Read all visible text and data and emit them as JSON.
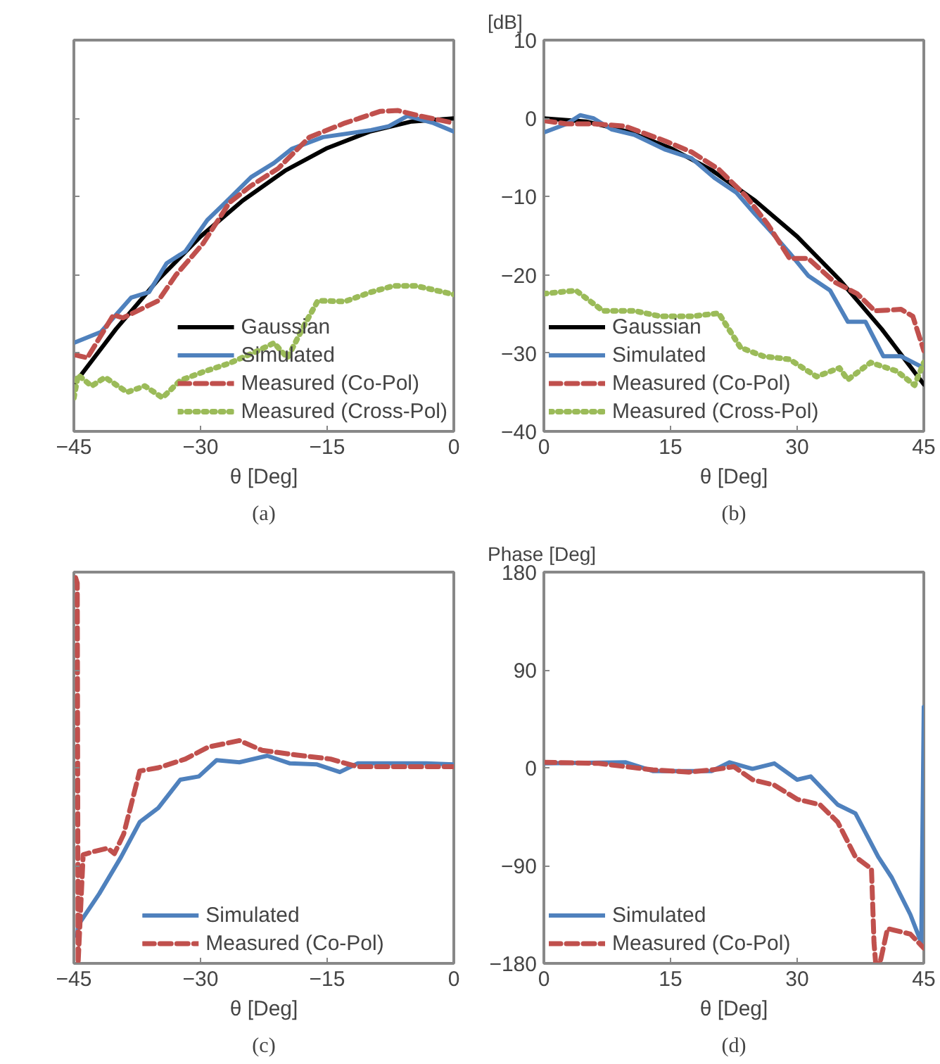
{
  "chart_data": [
    {
      "type": "line",
      "xlabel": "θ [Deg]",
      "annotations": [
        "(a)"
      ],
      "xlim": [
        -45,
        0
      ],
      "xticks": [
        -45,
        -30,
        -15,
        0
      ],
      "ylim": [
        -40,
        10
      ],
      "yticks": [
        -40,
        -30,
        -20,
        -10,
        0,
        10
      ],
      "tick_labels": "x",
      "legend": "bottom right",
      "series": [
        {
          "name": "Gaussian",
          "color": "#000000",
          "line_style": "solid",
          "x": [
            -45,
            -40,
            -35,
            -30,
            -25,
            -20,
            -15,
            -10,
            -5,
            0
          ],
          "values": [
            -34,
            -26.9,
            -20.6,
            -15.1,
            -10.5,
            -6.7,
            -3.8,
            -1.7,
            -0.4,
            0
          ]
        },
        {
          "name": "Simulated",
          "color": "#4f81bd",
          "line_style": "solid",
          "x": [
            -45,
            -41.8,
            -38.2,
            -36.1,
            -34,
            -31.8,
            -29.2,
            -27.1,
            -24,
            -21.3,
            -19.2,
            -15.5,
            -9.8,
            -7.7,
            -5.5,
            -2.4,
            0
          ],
          "values": [
            -28.7,
            -27.3,
            -22.9,
            -22.2,
            -18.5,
            -17,
            -13,
            -10.8,
            -7.5,
            -5.7,
            -3.9,
            -2.4,
            -1.5,
            -1,
            0.3,
            -0.6,
            -1.7
          ]
        },
        {
          "name": "Measured (Co-Pol)",
          "color": "#c0504d",
          "line_style": "dashed",
          "x": [
            -45,
            -43.4,
            -40.3,
            -39.2,
            -37.1,
            -35,
            -32.9,
            -29.7,
            -26.6,
            -24,
            -20.8,
            -17.1,
            -12.9,
            -8.7,
            -6.6,
            -4,
            0
          ],
          "values": [
            -30.2,
            -30.6,
            -25.1,
            -25.5,
            -24.4,
            -23.3,
            -20,
            -16,
            -10.8,
            -8.6,
            -6.4,
            -2.4,
            -0.6,
            0.9,
            1,
            0.3,
            -0.6
          ]
        },
        {
          "name": "Measured (Cross-Pol)",
          "color": "#9bbb59",
          "line_style": "dotted",
          "x": [
            -45,
            -44.5,
            -42.9,
            -41.3,
            -38.7,
            -36.6,
            -34.5,
            -32.4,
            -29.7,
            -26.6,
            -23.4,
            -21.3,
            -19.7,
            -17.6,
            -16.1,
            -12.9,
            -9.8,
            -7.1,
            -4.5,
            0
          ],
          "values": [
            -35.7,
            -32.8,
            -34.2,
            -33.1,
            -35,
            -34.2,
            -35.7,
            -33.5,
            -32.4,
            -31.3,
            -29.8,
            -28.7,
            -30.6,
            -26.2,
            -23.3,
            -23.4,
            -22.2,
            -21.4,
            -21.4,
            -22.5
          ]
        }
      ]
    },
    {
      "type": "line",
      "xlabel": "θ [Deg]",
      "ylabel": "[dB]",
      "annotations": [
        "(b)"
      ],
      "xlim": [
        0,
        45
      ],
      "xticks": [
        0,
        15,
        30,
        45
      ],
      "ylim": [
        -40,
        10
      ],
      "yticks": [
        -40,
        -30,
        -20,
        -10,
        0,
        10
      ],
      "legend": "bottom left",
      "series": [
        {
          "name": "Gaussian",
          "color": "#000000",
          "line_style": "solid",
          "x": [
            0,
            5,
            10,
            15,
            20,
            25,
            30,
            35,
            40,
            45
          ],
          "values": [
            0,
            -0.4,
            -1.7,
            -3.8,
            -6.7,
            -10.5,
            -15.1,
            -20.6,
            -26.9,
            -34
          ]
        },
        {
          "name": "Simulated",
          "color": "#4f81bd",
          "line_style": "solid",
          "x": [
            0,
            2.7,
            4.3,
            5.9,
            8,
            10.7,
            14.4,
            17.5,
            20.2,
            22.8,
            24.9,
            27,
            29.1,
            31.3,
            33.9,
            36,
            38.1,
            40.2,
            42.3,
            45
          ],
          "values": [
            -1.8,
            -0.7,
            0.4,
            0,
            -1.4,
            -2.1,
            -4,
            -5.1,
            -7.6,
            -9.5,
            -12.1,
            -14.6,
            -17.2,
            -20.1,
            -22,
            -26,
            -26,
            -30.4,
            -30.4,
            -31.9
          ]
        },
        {
          "name": "Measured (Co-Pol)",
          "color": "#c0504d",
          "line_style": "dashed",
          "x": [
            0,
            2.7,
            5.9,
            9.6,
            14.4,
            17.5,
            20.7,
            23.9,
            26.5,
            29.1,
            31.3,
            34.4,
            37.1,
            39.2,
            42.3,
            43.7,
            45
          ],
          "values": [
            -0.3,
            -0.7,
            -0.7,
            -1,
            -2.9,
            -4.3,
            -6.5,
            -9.9,
            -13.5,
            -17.9,
            -17.9,
            -20.9,
            -22.4,
            -24.6,
            -24.4,
            -25.3,
            -29.7
          ]
        },
        {
          "name": "Measured (Cross-Pol)",
          "color": "#9bbb59",
          "line_style": "dotted",
          "x": [
            0,
            3.8,
            7,
            10.7,
            13.8,
            17.5,
            20.7,
            23.3,
            26,
            29.1,
            32.3,
            35,
            36,
            38.7,
            41.8,
            43.9,
            45
          ],
          "values": [
            -22.4,
            -22,
            -24.6,
            -24.6,
            -25.3,
            -25.3,
            -24.9,
            -29.3,
            -30.4,
            -30.8,
            -33,
            -31.9,
            -33.4,
            -31.2,
            -32.3,
            -34.1,
            -31.2
          ]
        }
      ]
    },
    {
      "type": "line",
      "xlabel": "θ [Deg]",
      "annotations": [
        "(c)"
      ],
      "xlim": [
        -45,
        0
      ],
      "xticks": [
        -45,
        -30,
        -15,
        0
      ],
      "ylim": [
        -180,
        180
      ],
      "yticks": [
        -180,
        -90,
        0,
        90,
        180
      ],
      "tick_labels": "x",
      "legend": "bottom",
      "series": [
        {
          "name": "Simulated",
          "color": "#4f81bd",
          "line_style": "solid",
          "x": [
            -44.6,
            -44.5,
            -42,
            -39.4,
            -37.2,
            -35,
            -32.4,
            -30.2,
            -28.1,
            -25.4,
            -22.1,
            -19.4,
            -16.2,
            -13.5,
            -11.4,
            -8.1,
            -3.3,
            0
          ],
          "values": [
            -155,
            -145,
            -116,
            -82,
            -50,
            -37,
            -11,
            -8,
            7,
            5,
            11,
            4,
            3,
            -4,
            4,
            4,
            4,
            3
          ]
        },
        {
          "name": "Measured (Co-Pol)",
          "color": "#c0504d",
          "line_style": "dashed",
          "x": [
            -44.8,
            -44.6,
            -44.5,
            -43.9,
            -42.6,
            -41,
            -40.2,
            -39.1,
            -37.2,
            -35,
            -31.8,
            -29.1,
            -25.4,
            -22.7,
            -18.9,
            -14.6,
            -11.4,
            0
          ],
          "values": [
            175,
            170,
            -180,
            -80,
            -77,
            -74,
            -79,
            -61,
            -3,
            0,
            8,
            19,
            25,
            16,
            12,
            8,
            1,
            1
          ]
        }
      ]
    },
    {
      "type": "line",
      "xlabel": "θ [Deg]",
      "ylabel": "Phase [Deg]",
      "annotations": [
        "(d)"
      ],
      "xlim": [
        0,
        45
      ],
      "xticks": [
        0,
        15,
        30,
        45
      ],
      "ylim": [
        -180,
        180
      ],
      "yticks": [
        -180,
        -90,
        0,
        90,
        180
      ],
      "legend": "bottom left",
      "series": [
        {
          "name": "Simulated",
          "color": "#4f81bd",
          "line_style": "solid",
          "x": [
            0,
            9.7,
            12.9,
            19.9,
            22,
            24.7,
            27.3,
            30,
            31.6,
            34.8,
            36.9,
            39.6,
            41.2,
            43.4,
            44.7,
            45
          ],
          "values": [
            4,
            5,
            -3,
            -3,
            5,
            -1,
            4,
            -11,
            -8,
            -34,
            -42,
            -82,
            -101,
            -135,
            -161,
            56
          ]
        },
        {
          "name": "Measured (Co-Pol)",
          "color": "#c0504d",
          "line_style": "dashed",
          "x": [
            0,
            6.5,
            12.9,
            17.2,
            19.9,
            22.5,
            24.7,
            27.3,
            30,
            32.7,
            34.8,
            36.9,
            38.8,
            39.1,
            39.3,
            39.8,
            40.7,
            43.4,
            45
          ],
          "values": [
            5,
            4,
            -2,
            -4,
            -2,
            1,
            -11,
            -16,
            -29,
            -34,
            -50,
            -82,
            -93,
            -161,
            -180,
            -180,
            -148,
            -153,
            -166
          ]
        }
      ]
    }
  ]
}
